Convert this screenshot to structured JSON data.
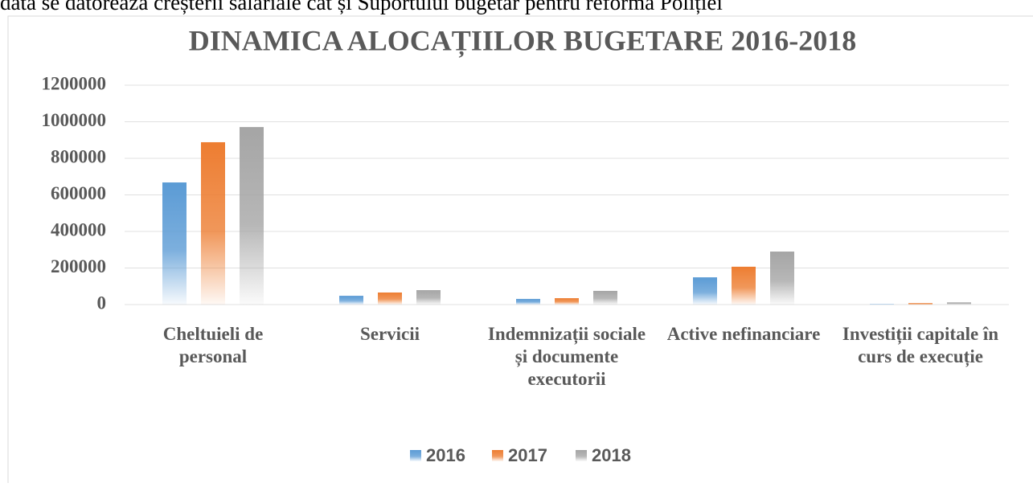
{
  "document_text": "dată se datorează creșterii salariale cât și Suportului bugetar pentru reforma Poliției",
  "chart_data": {
    "type": "bar",
    "title": "DINAMICA ALOCAȚIILOR BUGETARE 2016-2018",
    "categories": [
      "Cheltuieli de personal",
      "Servicii",
      "Indemnizații sociale și documente executorii",
      "Active nefinanciare",
      "Investiții capitale în curs de execuție"
    ],
    "series": [
      {
        "name": "2016",
        "color": "#5b9bd5",
        "values": [
          668000,
          48000,
          31000,
          149000,
          2000
        ]
      },
      {
        "name": "2017",
        "color": "#ed7d31",
        "values": [
          888000,
          66000,
          35000,
          207000,
          8000
        ]
      },
      {
        "name": "2018",
        "color": "#a5a5a5",
        "values": [
          971000,
          79000,
          75000,
          290000,
          12000
        ]
      }
    ],
    "ylim": [
      0,
      1200000
    ],
    "yticks": [
      0,
      200000,
      400000,
      600000,
      800000,
      1000000,
      1200000
    ],
    "grid": true,
    "legend": "bottom"
  }
}
